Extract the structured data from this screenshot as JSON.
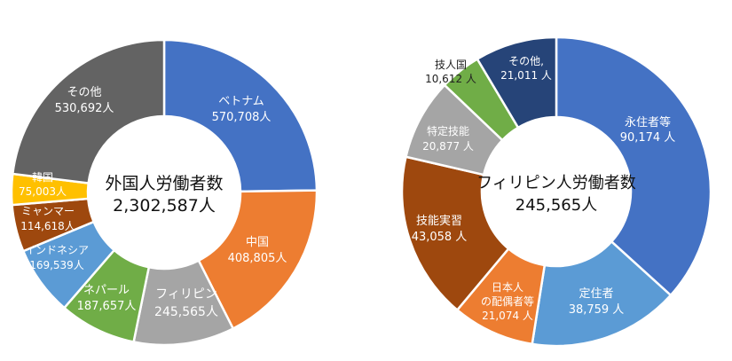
{
  "chart_data": [
    {
      "type": "pie",
      "variant": "donut",
      "center_title": "外国人労働者数",
      "center_value": "2,302,587人",
      "slices": [
        {
          "name": "ベトナム",
          "label": "570,708人",
          "value": 570708,
          "color": "#4472C4"
        },
        {
          "name": "中国",
          "label": "408,805人",
          "value": 408805,
          "color": "#ED7D31"
        },
        {
          "name": "フィリピン",
          "label": "245,565人",
          "value": 245565,
          "color": "#A5A5A5"
        },
        {
          "name": "ネパール",
          "label": "187,657人",
          "value": 187657,
          "color": "#70AD47"
        },
        {
          "name": "インドネシア",
          "label": "169,539人",
          "value": 169539,
          "color": "#5B9BD5"
        },
        {
          "name": "ミャンマー",
          "label": "114,618人",
          "value": 114618,
          "color": "#9E480E"
        },
        {
          "name": "韓国",
          "label": "75,003人",
          "value": 75003,
          "color": "#FFC000"
        },
        {
          "name": "その他",
          "label": "530,692人",
          "value": 530692,
          "color": "#636363"
        }
      ]
    },
    {
      "type": "pie",
      "variant": "donut",
      "center_title": "フィリピン人労働者数",
      "center_value": "245,565人",
      "slices": [
        {
          "name": "永住者等",
          "label": "90,174 人",
          "value": 90174,
          "color": "#4472C4"
        },
        {
          "name": "定住者",
          "label": "38,759 人",
          "value": 38759,
          "color": "#5B9BD5"
        },
        {
          "name": "日本人の配偶者等",
          "label": "21,074 人",
          "value": 21074,
          "color": "#ED7D31"
        },
        {
          "name": "技能実習",
          "label": "43,058 人",
          "value": 43058,
          "color": "#9E480E"
        },
        {
          "name": "特定技能",
          "label": "20,877 人",
          "value": 20877,
          "color": "#A5A5A5"
        },
        {
          "name": "技人国",
          "label": "10,612 人",
          "value": 10612,
          "color": "#70AD47"
        },
        {
          "name": "その他,",
          "label": "21,011 人",
          "value": 21011,
          "color": "#264478"
        }
      ]
    }
  ]
}
